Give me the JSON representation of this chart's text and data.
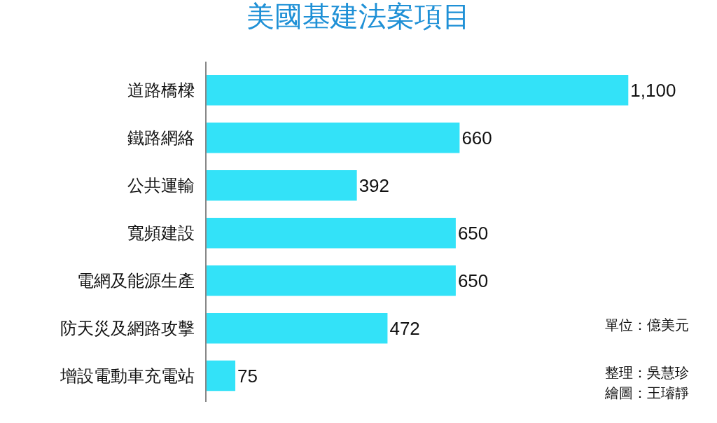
{
  "chart_data": {
    "type": "bar",
    "orientation": "horizontal",
    "title": "美國基建法案項目",
    "categories": [
      "道路橋樑",
      "鐵路網絡",
      "公共運輸",
      "寬頻建設",
      "電網及能源生產",
      "防天災及網路攻擊",
      "增設電動車充電站"
    ],
    "values": [
      1100,
      660,
      392,
      650,
      650,
      472,
      75
    ],
    "color": "#33e2f8",
    "value_labels": [
      "1,100",
      "660",
      "392",
      "650",
      "650",
      "472",
      "75"
    ],
    "annotations": [
      "單位：億美元",
      "整理：吳慧珍",
      "繪圖：王璿靜"
    ]
  }
}
